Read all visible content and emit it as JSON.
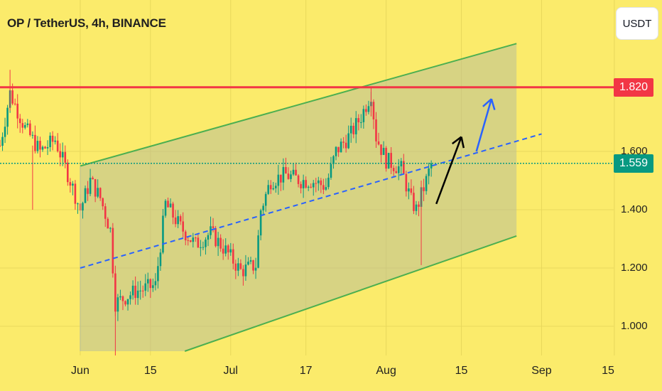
{
  "header": {
    "title": "OP / TetherUS, 4h, BINANCE"
  },
  "currency_button": {
    "label": "USDT"
  },
  "price_tags": {
    "resistance": {
      "label": "1.820",
      "color": "#f23645"
    },
    "last": {
      "label": "1.559",
      "color": "#089981"
    }
  },
  "colors": {
    "background": "#fbeb6b",
    "up": "#089981",
    "down": "#f23645",
    "channel_line": "#4caf50",
    "midline": "#2962ff",
    "resistance": "#f23645",
    "arrow_black": "#000000",
    "arrow_blue": "#2962ff"
  },
  "chart_data": {
    "type": "candlestick",
    "title": "OP / TetherUS, 4h, BINANCE",
    "y_ticks": [
      "1.000",
      "1.200",
      "1.400",
      "1.600"
    ],
    "x_ticks": [
      "Jun",
      "15",
      "Jul",
      "17",
      "Aug",
      "15",
      "Sep",
      "15"
    ],
    "y_range": [
      0.92,
      2.12
    ],
    "last_price": 1.559,
    "resistance_level": 1.82,
    "close_path": [
      {
        "day": 0,
        "price": 1.62
      },
      {
        "day": 2,
        "price": 1.8
      },
      {
        "day": 5,
        "price": 1.68
      },
      {
        "day": 8,
        "price": 1.6
      },
      {
        "day": 11,
        "price": 1.64
      },
      {
        "day": 14,
        "price": 1.5
      },
      {
        "day": 16,
        "price": 1.4
      },
      {
        "day": 18,
        "price": 1.5
      },
      {
        "day": 20,
        "price": 1.44
      },
      {
        "day": 22,
        "price": 1.33
      },
      {
        "day": 23,
        "price": 1.08
      },
      {
        "day": 27,
        "price": 1.12
      },
      {
        "day": 31,
        "price": 1.14
      },
      {
        "day": 33,
        "price": 1.42
      },
      {
        "day": 36,
        "price": 1.34
      },
      {
        "day": 39,
        "price": 1.28
      },
      {
        "day": 42,
        "price": 1.32
      },
      {
        "day": 45,
        "price": 1.26
      },
      {
        "day": 48,
        "price": 1.19
      },
      {
        "day": 51,
        "price": 1.21
      },
      {
        "day": 52,
        "price": 1.4
      },
      {
        "day": 54,
        "price": 1.5
      },
      {
        "day": 57,
        "price": 1.52
      },
      {
        "day": 60,
        "price": 1.5
      },
      {
        "day": 62,
        "price": 1.5
      },
      {
        "day": 65,
        "price": 1.48
      },
      {
        "day": 67,
        "price": 1.6
      },
      {
        "day": 70,
        "price": 1.66
      },
      {
        "day": 72,
        "price": 1.72
      },
      {
        "day": 74,
        "price": 1.8
      },
      {
        "day": 75,
        "price": 1.65
      },
      {
        "day": 77,
        "price": 1.57
      },
      {
        "day": 80,
        "price": 1.54
      },
      {
        "day": 82,
        "price": 1.43
      },
      {
        "day": 83,
        "price": 1.4
      },
      {
        "day": 85,
        "price": 1.5
      },
      {
        "day": 86,
        "price": 1.559
      }
    ],
    "channel": {
      "upper": [
        {
          "day": 16,
          "price": 1.55
        },
        {
          "day": 103,
          "price": 1.97
        }
      ],
      "lower": [
        {
          "day": 16,
          "price": 0.79
        },
        {
          "day": 103,
          "price": 1.31
        }
      ],
      "middle": [
        {
          "day": 16,
          "price": 1.2
        },
        {
          "day": 108,
          "price": 1.66
        }
      ]
    },
    "projection_arrows": [
      {
        "color": "black",
        "from": {
          "day": 87,
          "price": 1.42
        },
        "to": {
          "day": 92,
          "price": 1.65
        }
      },
      {
        "color": "blue",
        "from": {
          "day": 95,
          "price": 1.6
        },
        "to": {
          "day": 98,
          "price": 1.78
        }
      }
    ]
  }
}
